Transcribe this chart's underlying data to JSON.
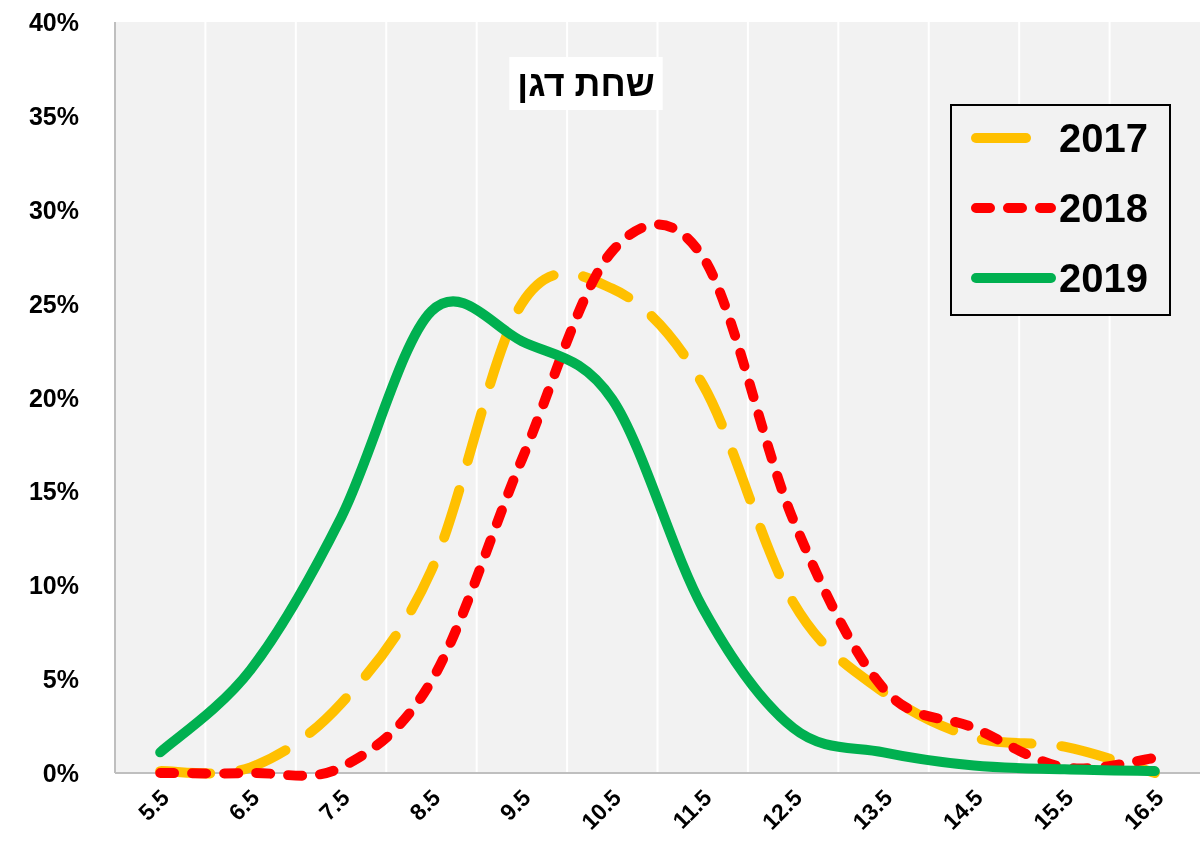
{
  "chart_data": {
    "type": "line",
    "title": "שחת דגן",
    "categories": [
      "5.5",
      "6.5",
      "7.5",
      "8.5",
      "9.5",
      "10.5",
      "11.5",
      "12.5",
      "13.5",
      "14.5",
      "15.5",
      "16.5"
    ],
    "series": [
      {
        "name": "2017",
        "color": "#ffc000",
        "line_style": "dashed",
        "values": [
          0.1,
          0.3,
          3.7,
          10.8,
          25.0,
          25.8,
          20.7,
          9.1,
          4.3,
          1.9,
          1.4,
          0
        ]
      },
      {
        "name": "2018",
        "color": "#ff0000",
        "line_style": "dotted",
        "values": [
          0,
          0,
          0.3,
          4.9,
          16.7,
          27.8,
          27.5,
          13.5,
          4.5,
          2.4,
          0.3,
          0.8
        ]
      },
      {
        "name": "2019",
        "color": "#00b050",
        "line_style": "solid",
        "values": [
          1.1,
          5.5,
          13.6,
          24.6,
          23.0,
          19.9,
          8.8,
          2.4,
          1.1,
          0.4,
          0.2,
          0.1
        ]
      }
    ],
    "ylim": [
      0,
      40
    ],
    "yticks": [
      {
        "value": 0,
        "label": "0%"
      },
      {
        "value": 5,
        "label": "5%"
      },
      {
        "value": 10,
        "label": "10%"
      },
      {
        "value": 15,
        "label": "15%"
      },
      {
        "value": 20,
        "label": "20%"
      },
      {
        "value": 25,
        "label": "25%"
      },
      {
        "value": 30,
        "label": "30%"
      },
      {
        "value": 35,
        "label": "35%"
      },
      {
        "value": 40,
        "label": "40%"
      }
    ],
    "grid": "x",
    "legend": "top right"
  }
}
